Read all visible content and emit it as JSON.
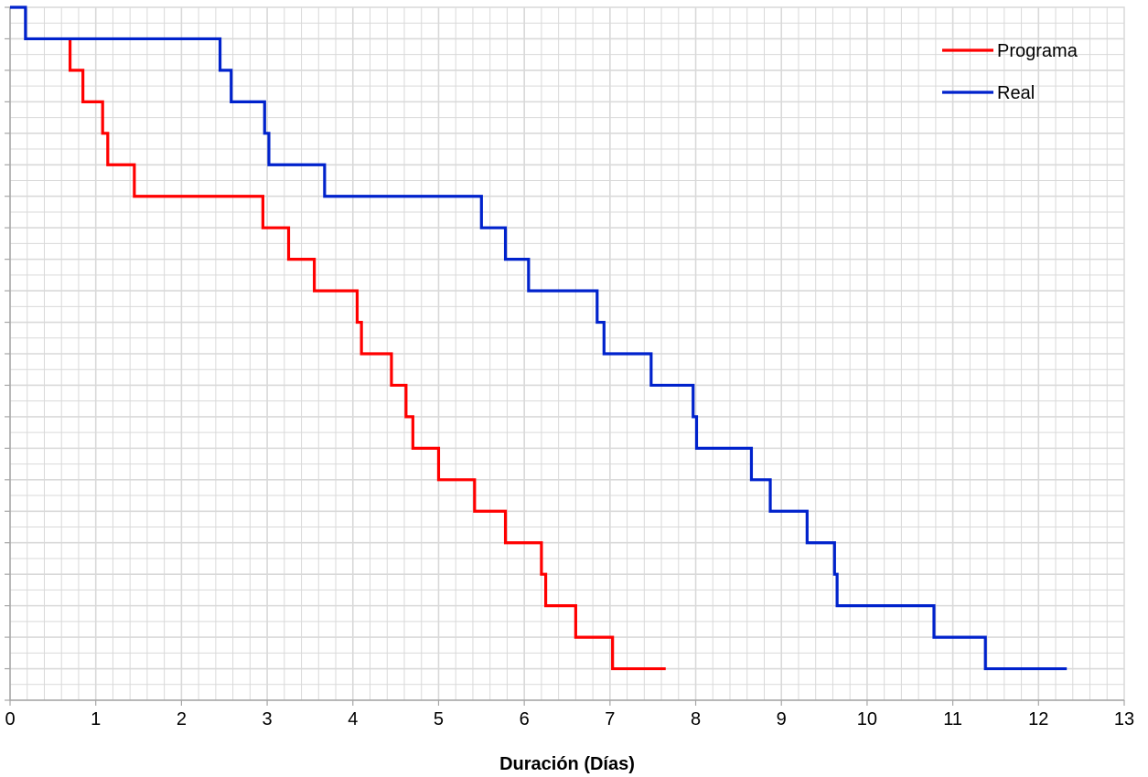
{
  "chart_data": {
    "type": "line",
    "step": true,
    "title": "",
    "xlabel": "Duración (Días)",
    "ylabel": "",
    "xlim": [
      0,
      13
    ],
    "ylim": [
      0,
      21
    ],
    "x_ticks": [
      "0",
      "1",
      "2",
      "3",
      "4",
      "5",
      "6",
      "7",
      "8",
      "9",
      "10",
      "11",
      "12",
      "13"
    ],
    "x_minor_step": 0.2,
    "y_major_step": 1,
    "y_minor_step": 0.5,
    "show_y_tick_labels": false,
    "grid": true,
    "legend_position": "top-right",
    "colors": {
      "grid": "#d9d9d9",
      "axis": "#a6a6a6",
      "Programa": "#ff0000",
      "Real": "#0022cc"
    },
    "series": [
      {
        "name": "Programa",
        "color": "#ff0000",
        "points": [
          {
            "x": 0.7,
            "y": 21
          },
          {
            "x": 0.7,
            "y": 20
          },
          {
            "x": 0.85,
            "y": 20
          },
          {
            "x": 0.85,
            "y": 19
          },
          {
            "x": 1.08,
            "y": 19
          },
          {
            "x": 1.08,
            "y": 18
          },
          {
            "x": 1.14,
            "y": 18
          },
          {
            "x": 1.14,
            "y": 17
          },
          {
            "x": 1.45,
            "y": 17
          },
          {
            "x": 1.45,
            "y": 16
          },
          {
            "x": 2.95,
            "y": 16
          },
          {
            "x": 2.95,
            "y": 15
          },
          {
            "x": 3.25,
            "y": 15
          },
          {
            "x": 3.25,
            "y": 14
          },
          {
            "x": 3.55,
            "y": 14
          },
          {
            "x": 3.55,
            "y": 13
          },
          {
            "x": 4.05,
            "y": 13
          },
          {
            "x": 4.05,
            "y": 12
          },
          {
            "x": 4.1,
            "y": 12
          },
          {
            "x": 4.1,
            "y": 11
          },
          {
            "x": 4.45,
            "y": 11
          },
          {
            "x": 4.45,
            "y": 10
          },
          {
            "x": 4.62,
            "y": 10
          },
          {
            "x": 4.62,
            "y": 9
          },
          {
            "x": 4.7,
            "y": 9
          },
          {
            "x": 4.7,
            "y": 8
          },
          {
            "x": 5.0,
            "y": 8
          },
          {
            "x": 5.0,
            "y": 7
          },
          {
            "x": 5.42,
            "y": 7
          },
          {
            "x": 5.42,
            "y": 6
          },
          {
            "x": 5.78,
            "y": 6
          },
          {
            "x": 5.78,
            "y": 5
          },
          {
            "x": 6.2,
            "y": 5
          },
          {
            "x": 6.2,
            "y": 4
          },
          {
            "x": 6.25,
            "y": 4
          },
          {
            "x": 6.25,
            "y": 3
          },
          {
            "x": 6.6,
            "y": 3
          },
          {
            "x": 6.6,
            "y": 2
          },
          {
            "x": 7.03,
            "y": 2
          },
          {
            "x": 7.03,
            "y": 1
          },
          {
            "x": 7.65,
            "y": 1
          }
        ]
      },
      {
        "name": "Real",
        "color": "#0022cc",
        "points": [
          {
            "x": 0.0,
            "y": 22
          },
          {
            "x": 0.18,
            "y": 22
          },
          {
            "x": 0.18,
            "y": 21
          },
          {
            "x": 2.45,
            "y": 21
          },
          {
            "x": 2.45,
            "y": 20
          },
          {
            "x": 2.58,
            "y": 20
          },
          {
            "x": 2.58,
            "y": 19
          },
          {
            "x": 2.97,
            "y": 19
          },
          {
            "x": 2.97,
            "y": 18
          },
          {
            "x": 3.02,
            "y": 18
          },
          {
            "x": 3.02,
            "y": 17
          },
          {
            "x": 3.67,
            "y": 17
          },
          {
            "x": 3.67,
            "y": 16
          },
          {
            "x": 5.5,
            "y": 16
          },
          {
            "x": 5.5,
            "y": 15
          },
          {
            "x": 5.78,
            "y": 15
          },
          {
            "x": 5.78,
            "y": 14
          },
          {
            "x": 6.05,
            "y": 14
          },
          {
            "x": 6.05,
            "y": 13
          },
          {
            "x": 6.85,
            "y": 13
          },
          {
            "x": 6.85,
            "y": 12
          },
          {
            "x": 6.93,
            "y": 12
          },
          {
            "x": 6.93,
            "y": 11
          },
          {
            "x": 7.48,
            "y": 11
          },
          {
            "x": 7.48,
            "y": 10
          },
          {
            "x": 7.97,
            "y": 10
          },
          {
            "x": 7.97,
            "y": 9
          },
          {
            "x": 8.01,
            "y": 9
          },
          {
            "x": 8.01,
            "y": 8
          },
          {
            "x": 8.65,
            "y": 8
          },
          {
            "x": 8.65,
            "y": 7
          },
          {
            "x": 8.87,
            "y": 7
          },
          {
            "x": 8.87,
            "y": 6
          },
          {
            "x": 9.3,
            "y": 6
          },
          {
            "x": 9.3,
            "y": 5
          },
          {
            "x": 9.62,
            "y": 5
          },
          {
            "x": 9.62,
            "y": 4
          },
          {
            "x": 9.65,
            "y": 4
          },
          {
            "x": 9.65,
            "y": 3
          },
          {
            "x": 10.78,
            "y": 3
          },
          {
            "x": 10.78,
            "y": 2
          },
          {
            "x": 11.38,
            "y": 2
          },
          {
            "x": 11.38,
            "y": 1
          },
          {
            "x": 12.33,
            "y": 1
          }
        ]
      }
    ]
  }
}
